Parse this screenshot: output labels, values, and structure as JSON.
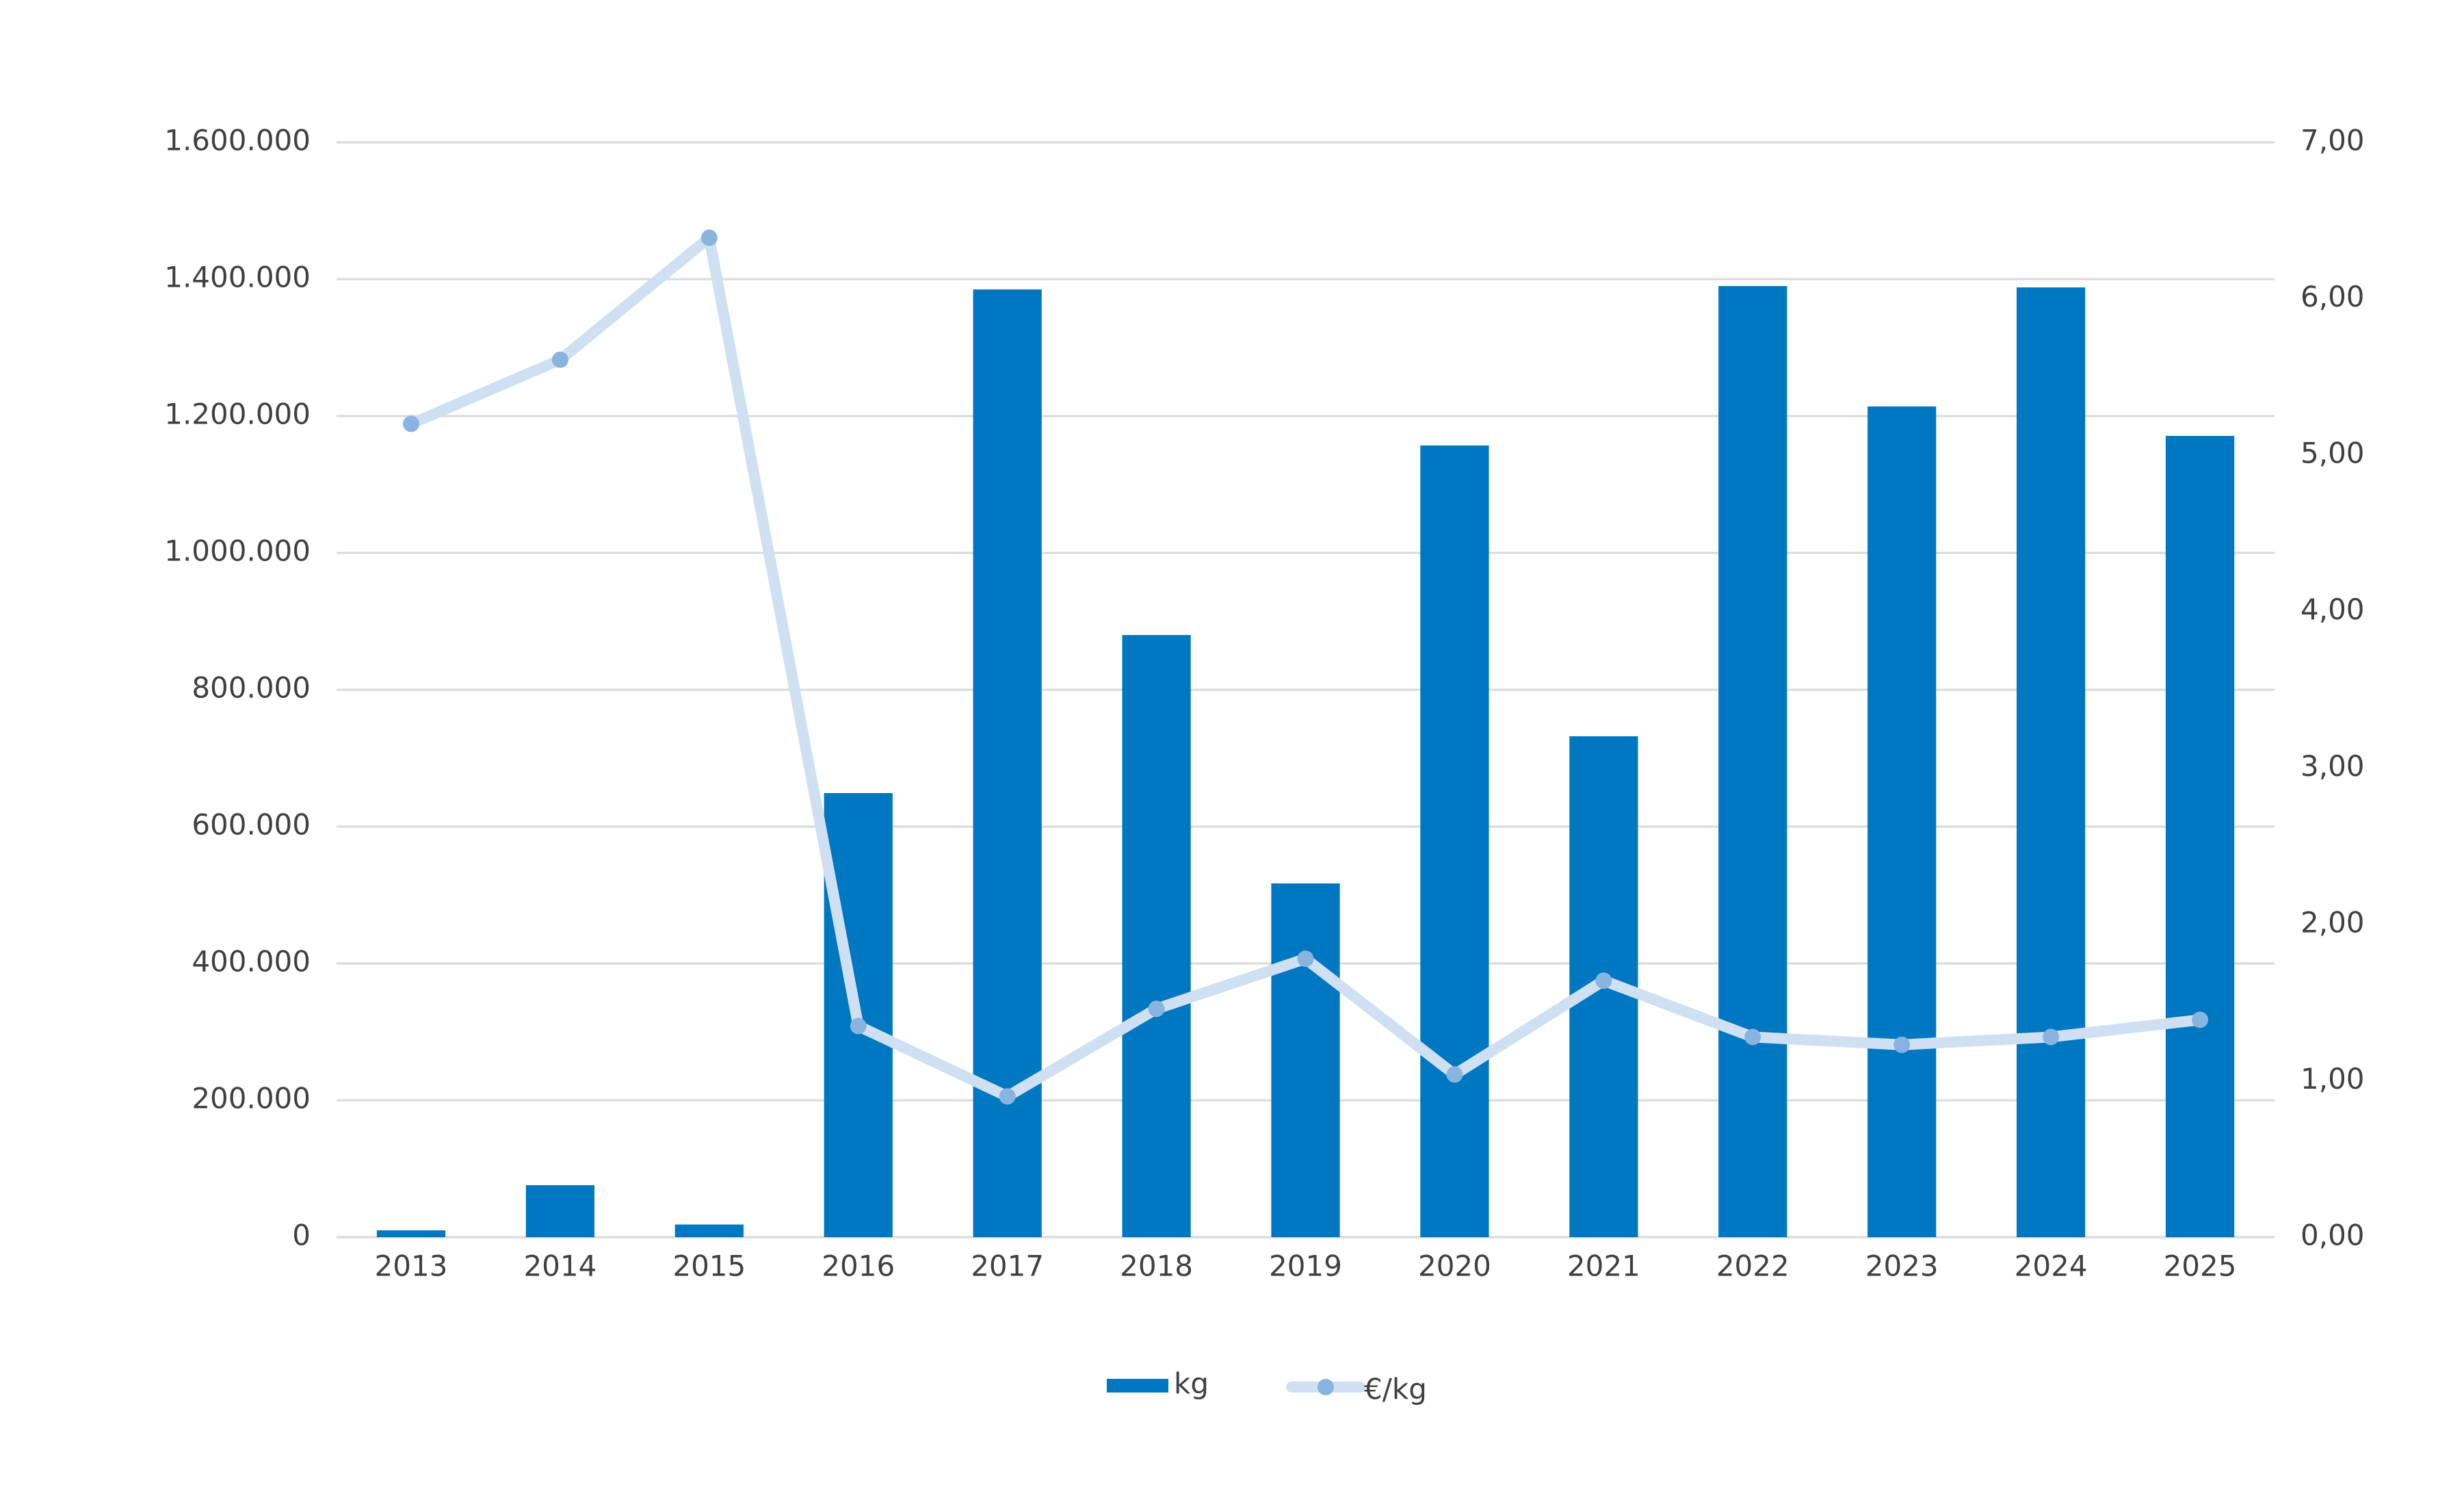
{
  "chart_data": {
    "type": "bar-line",
    "categories": [
      "2013",
      "2014",
      "2015",
      "2016",
      "2017",
      "2018",
      "2019",
      "2020",
      "2021",
      "2022",
      "2023",
      "2024",
      "2025"
    ],
    "series": [
      {
        "name": "kg",
        "type": "bar",
        "color": "#0078c1",
        "axis": "y",
        "values": [
          10000,
          76000,
          18500,
          649000,
          1385000,
          880000,
          517000,
          1157000,
          732000,
          1390000,
          1214000,
          1388000,
          1171000
        ]
      },
      {
        "name": "€/kg",
        "type": "line",
        "color": "#cfe0f3",
        "marker_color": "#8ab4e0",
        "axis": "y2",
        "values": [
          5.2,
          5.61,
          6.39,
          1.35,
          0.9,
          1.46,
          1.78,
          1.04,
          1.64,
          1.28,
          1.23,
          1.28,
          1.39
        ]
      }
    ],
    "ylim": [
      0,
      1600000
    ],
    "yticks": [
      0,
      {
        "value": 200000,
        "label": "200.000"
      },
      {
        "value": 400000,
        "label": "400.000"
      },
      {
        "value": 600000,
        "label": "600.000"
      },
      {
        "value": 800000,
        "label": "800.000"
      },
      {
        "value": 1000000,
        "label": "1.000.000"
      },
      {
        "value": 1200000,
        "label": "1.200.000"
      },
      {
        "value": 1400000,
        "label": "1.400.000"
      },
      {
        "value": 1600000,
        "label": "1.600.000"
      }
    ],
    "y2lim": [
      0,
      7
    ],
    "y2ticks": [
      {
        "value": 0,
        "label": "0,00"
      },
      {
        "value": 1,
        "label": "1,00"
      },
      {
        "value": 2,
        "label": "2,00"
      },
      {
        "value": 3,
        "label": "3,00"
      },
      {
        "value": 4,
        "label": "4,00"
      },
      {
        "value": 5,
        "label": "5,00"
      },
      {
        "value": 6,
        "label": "6,00"
      },
      {
        "value": 7,
        "label": "7,00"
      }
    ],
    "grid": true,
    "legend": "bottom"
  }
}
